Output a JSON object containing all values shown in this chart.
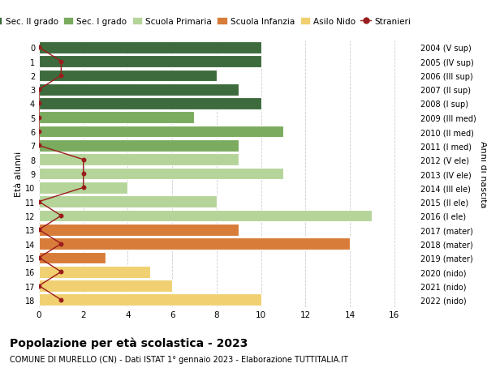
{
  "ages": [
    18,
    17,
    16,
    15,
    14,
    13,
    12,
    11,
    10,
    9,
    8,
    7,
    6,
    5,
    4,
    3,
    2,
    1,
    0
  ],
  "right_labels": [
    "2004 (V sup)",
    "2005 (IV sup)",
    "2006 (III sup)",
    "2007 (II sup)",
    "2008 (I sup)",
    "2009 (III med)",
    "2010 (II med)",
    "2011 (I med)",
    "2012 (V ele)",
    "2013 (IV ele)",
    "2014 (III ele)",
    "2015 (II ele)",
    "2016 (I ele)",
    "2017 (mater)",
    "2018 (mater)",
    "2019 (mater)",
    "2020 (nido)",
    "2021 (nido)",
    "2022 (nido)"
  ],
  "bar_values": [
    10,
    10,
    8,
    9,
    10,
    7,
    11,
    9,
    9,
    11,
    4,
    8,
    15,
    9,
    14,
    3,
    5,
    6,
    10
  ],
  "bar_colors": [
    "#3d6b3d",
    "#3d6b3d",
    "#3d6b3d",
    "#3d6b3d",
    "#3d6b3d",
    "#7aab5e",
    "#7aab5e",
    "#7aab5e",
    "#b5d49a",
    "#b5d49a",
    "#b5d49a",
    "#b5d49a",
    "#b5d49a",
    "#d87c3a",
    "#d87c3a",
    "#d87c3a",
    "#f0d070",
    "#f0d070",
    "#f0d070"
  ],
  "stranieri_values": [
    0,
    1,
    1,
    0,
    0,
    0,
    0,
    0,
    2,
    2,
    2,
    0,
    1,
    0,
    1,
    0,
    1,
    0,
    1
  ],
  "stranieri_color": "#9b1c1c",
  "legend_labels": [
    "Sec. II grado",
    "Sec. I grado",
    "Scuola Primaria",
    "Scuola Infanzia",
    "Asilo Nido",
    "Stranieri"
  ],
  "legend_colors": [
    "#3d6b3d",
    "#7aab5e",
    "#b5d49a",
    "#d87c3a",
    "#f0d070",
    "#9b1c1c"
  ],
  "ylabel_right": "Anni di nascita",
  "ylabel_left": "Età alunni",
  "title": "Popolazione per età scolastica - 2023",
  "subtitle": "COMUNE DI MURELLO (CN) - Dati ISTAT 1° gennaio 2023 - Elaborazione TUTTITALIA.IT",
  "xlim": [
    0,
    17
  ],
  "background_color": "#ffffff",
  "bar_edge_color": "#ffffff",
  "grid_color": "#cccccc"
}
